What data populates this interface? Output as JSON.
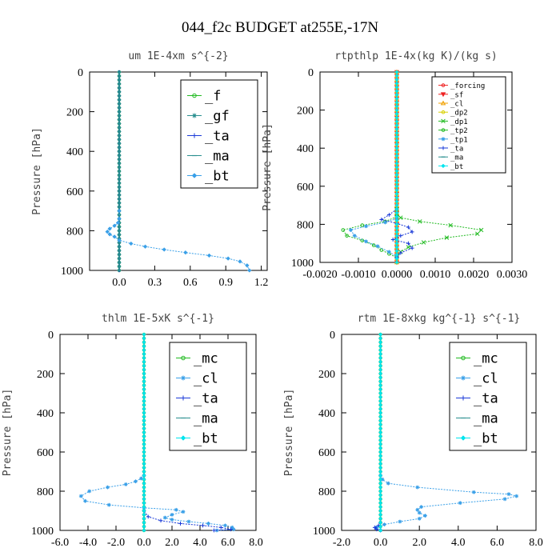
{
  "figure_title": "044_f2c  BUDGET at255E,-17N",
  "colors": {
    "axis": "#000000",
    "green": "#22bb22",
    "teal": "#2a8f8f",
    "blue": "#1a3ad8",
    "cyan_line": "#3aa0e8",
    "cyan_marker": "#00e5ee",
    "red": "#ee2222",
    "orange": "#f0a000",
    "yellow": "#d8d000"
  },
  "chart_data": [
    {
      "type": "line",
      "title": "um   1E-4xm s^{-2}",
      "ylabel": "Pressure [hPa]",
      "xlim": [
        -0.25,
        1.25
      ],
      "ylim": [
        1000,
        0
      ],
      "xticks": [
        "0.0",
        "0.3",
        "0.6",
        "0.9",
        "1.2"
      ],
      "xtick_values": [
        0.0,
        0.3,
        0.6,
        0.9,
        1.2
      ],
      "yticks": [
        "0",
        "200",
        "400",
        "600",
        "800",
        "1000"
      ],
      "ytick_values": [
        0,
        200,
        400,
        600,
        800,
        1000
      ],
      "grid": false,
      "legend_position": "top-right",
      "legend_style": "large",
      "series": [
        {
          "name": "_f",
          "color_key": "green",
          "marker": "circle",
          "type": "flat",
          "x": 0.0
        },
        {
          "name": "_gf",
          "color_key": "teal",
          "marker": "star",
          "type": "flat",
          "x": 0.0
        },
        {
          "name": "_ta",
          "color_key": "blue",
          "marker": "plus",
          "type": "flat",
          "x": 0.0
        },
        {
          "name": "_ma",
          "color_key": "teal",
          "marker": "dash",
          "type": "flat",
          "x": 0.0
        },
        {
          "name": "_bt",
          "color_key": "cyan_line",
          "marker": "diamond",
          "type": "points",
          "x": [
            0.0,
            0.0,
            -0.01,
            -0.04,
            -0.08,
            -0.1,
            -0.08,
            -0.04,
            0.0,
            0.1,
            0.22,
            0.38,
            0.56,
            0.76,
            0.92,
            1.02,
            1.08,
            1.1
          ],
          "p": [
            700,
            740,
            760,
            775,
            790,
            805,
            818,
            830,
            848,
            865,
            880,
            895,
            910,
            925,
            940,
            955,
            975,
            1000
          ]
        }
      ]
    },
    {
      "type": "line",
      "title": "rtpthlp   1E-4x(kg K)/(kg s)",
      "ylabel": "Pressure [hPa]",
      "xlim": [
        -0.002,
        0.003
      ],
      "ylim": [
        1000,
        0
      ],
      "xticks": [
        "-0.0020",
        "-0.0010",
        "0.0000",
        "0.0010",
        "0.0020",
        "0.0030"
      ],
      "xtick_values": [
        -0.002,
        -0.001,
        0.0,
        0.001,
        0.002,
        0.003
      ],
      "yticks": [
        "0",
        "200",
        "400",
        "600",
        "800",
        "1000"
      ],
      "ytick_values": [
        0,
        200,
        400,
        600,
        800,
        1000
      ],
      "grid": false,
      "legend_position": "top-right",
      "legend_style": "small",
      "series": [
        {
          "name": "_forcing",
          "color_key": "red",
          "marker": "circle",
          "type": "flat",
          "x": 0.0
        },
        {
          "name": "_sf",
          "color_key": "red",
          "marker": "triangle-down",
          "type": "flat",
          "x": 0.0
        },
        {
          "name": "_cl",
          "color_key": "orange",
          "marker": "triangle",
          "type": "flat",
          "x": 0.0
        },
        {
          "name": "_dp2",
          "color_key": "yellow",
          "marker": "circle",
          "type": "flat",
          "x": 0.0
        },
        {
          "name": "_dp1",
          "color_key": "green",
          "marker": "x",
          "type": "points",
          "x": [
            0.0,
            0.0,
            0.0001,
            0.0006,
            0.0014,
            0.0022,
            0.0021,
            0.0013,
            0.0007,
            0.0003,
            0.0001,
            0.0
          ],
          "p": [
            720,
            745,
            765,
            785,
            805,
            830,
            850,
            870,
            895,
            920,
            945,
            970
          ]
        },
        {
          "name": "_tp2",
          "color_key": "green",
          "marker": "circle",
          "type": "points",
          "x": [
            0.0,
            -0.0003,
            -0.0009,
            -0.0014,
            -0.0013,
            -0.0009,
            -0.0006,
            -0.0004,
            -0.0002,
            0.0
          ],
          "p": [
            760,
            785,
            805,
            830,
            860,
            885,
            910,
            935,
            955,
            975
          ]
        },
        {
          "name": "_tp1",
          "color_key": "cyan_line",
          "marker": "star",
          "type": "points",
          "x": [
            0.0,
            -0.0003,
            -0.0008,
            -0.0012,
            -0.0011,
            -0.0008,
            -0.0005,
            -0.0002,
            0.0
          ],
          "p": [
            770,
            790,
            810,
            830,
            860,
            890,
            915,
            945,
            970
          ]
        },
        {
          "name": "_ta",
          "color_key": "blue",
          "marker": "plus",
          "type": "points",
          "x": [
            0.0,
            -0.0002,
            -0.0004,
            0.0,
            0.0003,
            0.0004,
            0.0001,
            -0.0001,
            0.0003,
            0.0004,
            0.0001,
            0.0
          ],
          "p": [
            720,
            750,
            775,
            795,
            815,
            840,
            860,
            880,
            900,
            925,
            950,
            975
          ]
        },
        {
          "name": "_ma",
          "color_key": "teal",
          "marker": "dash",
          "type": "flat",
          "x": 0.0
        },
        {
          "name": "_bt",
          "color_key": "cyan_marker",
          "marker": "diamond",
          "type": "flat",
          "x": 0.0
        }
      ]
    },
    {
      "type": "line",
      "title": "thlm   1E-5xK  s^{-1}",
      "ylabel": "Pressure [hPa]",
      "xlim": [
        -6.0,
        8.0
      ],
      "ylim": [
        1000,
        0
      ],
      "xticks": [
        "-6.0",
        "-4.0",
        "-2.0",
        "0.0",
        "2.0",
        "4.0",
        "6.0",
        "8.0"
      ],
      "xtick_values": [
        -6,
        -4,
        -2,
        0,
        2,
        4,
        6,
        8
      ],
      "yticks": [
        "0",
        "200",
        "400",
        "600",
        "800",
        "1000"
      ],
      "ytick_values": [
        0,
        200,
        400,
        600,
        800,
        1000
      ],
      "grid": false,
      "legend_position": "top-right",
      "legend_style": "large",
      "series": [
        {
          "name": "_mc",
          "color_key": "green",
          "marker": "circle",
          "type": "flat",
          "x": 0.0
        },
        {
          "name": "_cl",
          "color_key": "cyan_line",
          "marker": "star",
          "type": "points",
          "x": [
            0.0,
            -0.2,
            -0.6,
            -1.3,
            -2.6,
            -3.9,
            -4.5,
            -4.2,
            -2.5,
            0.0,
            2.3,
            2.8,
            2.0,
            1.5,
            2.0,
            3.2,
            4.6,
            5.8,
            6.3,
            6.4,
            5.2
          ],
          "p": [
            720,
            735,
            750,
            765,
            780,
            800,
            825,
            850,
            870,
            885,
            895,
            905,
            920,
            935,
            945,
            955,
            965,
            975,
            985,
            995,
            1000
          ]
        },
        {
          "name": "_ta",
          "color_key": "blue",
          "marker": "plus",
          "type": "points",
          "x": [
            0.0,
            0.0,
            0.3,
            1.2,
            2.6,
            4.2,
            5.5,
            6.2,
            5.0
          ],
          "p": [
            860,
            900,
            930,
            950,
            965,
            975,
            985,
            995,
            1000
          ]
        },
        {
          "name": "_ma",
          "color_key": "teal",
          "marker": "dash",
          "type": "flat",
          "x": 0.0
        },
        {
          "name": "_bt",
          "color_key": "cyan_marker",
          "marker": "diamond",
          "type": "flat",
          "x": 0.0
        }
      ]
    },
    {
      "type": "line",
      "title": "rtm   1E-8xkg  kg^{-1} s^{-1}",
      "ylabel": "Pressure [hPa]",
      "xlim": [
        -2.0,
        8.0
      ],
      "ylim": [
        1000,
        0
      ],
      "xticks": [
        "-2.0",
        "0.0",
        "2.0",
        "4.0",
        "6.0",
        "8.0"
      ],
      "xtick_values": [
        -2,
        0,
        2,
        4,
        6,
        8
      ],
      "yticks": [
        "0",
        "200",
        "400",
        "600",
        "800",
        "1000"
      ],
      "ytick_values": [
        0,
        200,
        400,
        600,
        800,
        1000
      ],
      "grid": false,
      "legend_position": "top-right",
      "legend_style": "large",
      "series": [
        {
          "name": "_mc",
          "color_key": "green",
          "marker": "circle",
          "type": "flat",
          "x": 0.0
        },
        {
          "name": "_cl",
          "color_key": "cyan_line",
          "marker": "star",
          "type": "points",
          "x": [
            0.0,
            0.1,
            0.4,
            1.9,
            4.8,
            6.6,
            7.0,
            6.4,
            4.1,
            2.1,
            1.9,
            2.0,
            2.3,
            2.0,
            1.0,
            0.2,
            -0.2,
            0.0
          ],
          "p": [
            720,
            740,
            760,
            780,
            805,
            815,
            825,
            840,
            860,
            880,
            895,
            910,
            925,
            940,
            955,
            970,
            985,
            1000
          ]
        },
        {
          "name": "_ta",
          "color_key": "blue",
          "marker": "plus",
          "type": "points",
          "x": [
            0.0,
            -0.1,
            -0.3,
            -0.2,
            0.0
          ],
          "p": [
            960,
            975,
            985,
            995,
            1000
          ]
        },
        {
          "name": "_ma",
          "color_key": "teal",
          "marker": "dash",
          "type": "flat",
          "x": 0.0
        },
        {
          "name": "_bt",
          "color_key": "cyan_marker",
          "marker": "diamond",
          "type": "flat",
          "x": 0.0
        }
      ]
    }
  ]
}
